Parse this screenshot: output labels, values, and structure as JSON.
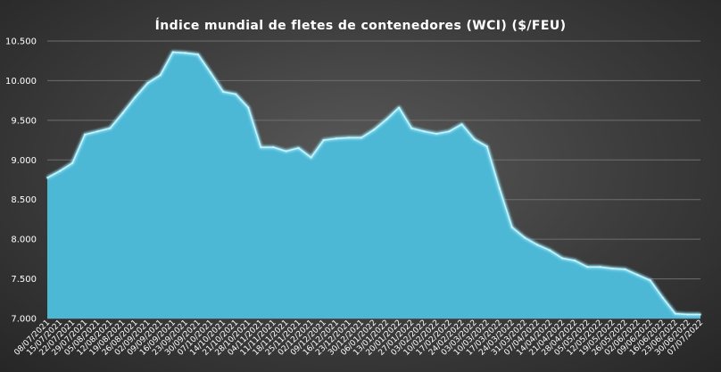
{
  "chart_data": {
    "type": "area",
    "title": "Índice mundial de fletes de contenedores (WCI) ($/FEU)",
    "xlabel": "",
    "ylabel": "",
    "ylim": [
      7000,
      10500
    ],
    "yticks": [
      "7.000",
      "7.500",
      "8.000",
      "8.500",
      "9.000",
      "9.500",
      "10.000",
      "10.500"
    ],
    "grid": true,
    "legend": "none",
    "colors": {
      "area": "#4db8d6",
      "edge": "#8fe3f5",
      "text": "#ffffff"
    },
    "categories": [
      "08/07/2021",
      "15/07/2021",
      "22/07/2021",
      "29/07/2021",
      "05/08/2021",
      "12/08/2021",
      "19/08/2021",
      "26/08/2021",
      "02/09/2021",
      "09/09/2021",
      "16/09/2021",
      "23/09/2021",
      "30/09/2021",
      "07/10/2021",
      "14/10/2021",
      "21/10/2021",
      "28/10/2021",
      "04/11/2021",
      "11/11/2021",
      "18/11/2021",
      "25/11/2021",
      "02/12/2021",
      "09/12/2021",
      "16/12/2021",
      "23/12/2021",
      "30/12/2021",
      "06/01/2022",
      "13/01/2022",
      "20/01/2022",
      "27/01/2022",
      "03/02/2022",
      "10/02/2022",
      "17/02/2022",
      "24/02/2022",
      "03/03/2022",
      "10/03/2022",
      "17/03/2022",
      "24/03/2022",
      "31/03/2022",
      "07/04/2022",
      "14/04/2022",
      "21/04/2022",
      "28/04/2022",
      "05/05/2022",
      "12/05/2022",
      "19/05/2022",
      "26/05/2022",
      "02/06/2022",
      "09/06/2022",
      "16/06/2022",
      "23/06/2022",
      "30/06/2022",
      "07/07/2022"
    ],
    "values": [
      8775,
      8860,
      8960,
      9320,
      9360,
      9400,
      9590,
      9790,
      9970,
      10070,
      10360,
      10350,
      10330,
      10100,
      9860,
      9830,
      9660,
      9160,
      9160,
      9110,
      9150,
      9030,
      9250,
      9270,
      9280,
      9280,
      9380,
      9510,
      9660,
      9400,
      9360,
      9330,
      9360,
      9450,
      9260,
      9170,
      8640,
      8150,
      8020,
      7930,
      7860,
      7760,
      7730,
      7650,
      7650,
      7630,
      7620,
      7550,
      7480,
      7260,
      7060,
      7050,
      7050
    ]
  }
}
